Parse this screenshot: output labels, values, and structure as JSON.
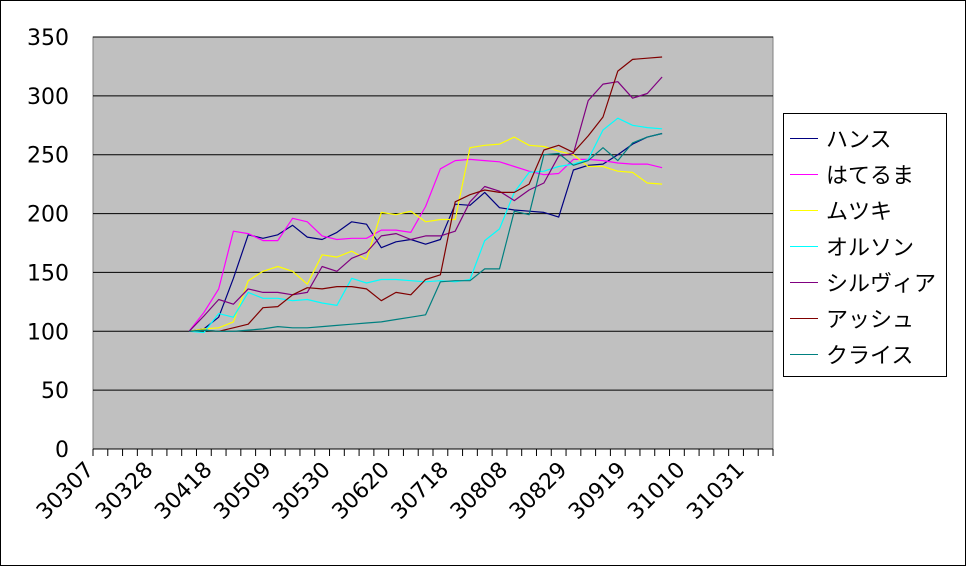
{
  "chart_data": {
    "type": "line",
    "title": "",
    "xlabel": "",
    "ylabel": "",
    "ylim": [
      0,
      350
    ],
    "yticks": [
      0,
      50,
      100,
      150,
      200,
      250,
      300,
      350
    ],
    "grid": true,
    "legend_position": "right",
    "plot_background": "#c0c0c0",
    "x_index_count": 46,
    "x_tick_labels": [
      {
        "index": 0,
        "label": "30307"
      },
      {
        "index": 4,
        "label": "30328"
      },
      {
        "index": 8,
        "label": "30418"
      },
      {
        "index": 12,
        "label": "30509"
      },
      {
        "index": 16,
        "label": "30530"
      },
      {
        "index": 20,
        "label": "30620"
      },
      {
        "index": 24,
        "label": "30718"
      },
      {
        "index": 28,
        "label": "30808"
      },
      {
        "index": 32,
        "label": "30829"
      },
      {
        "index": 36,
        "label": "30919"
      },
      {
        "index": 40,
        "label": "31010"
      },
      {
        "index": 44,
        "label": "31031"
      }
    ],
    "x_start_index": 6,
    "series": [
      {
        "name": "ハンス",
        "color": "#000080",
        "values": [
          100,
          102,
          112,
          145,
          182,
          179,
          182,
          190,
          180,
          178,
          184,
          193,
          191,
          171,
          176,
          178,
          174,
          178,
          208,
          207,
          218,
          205,
          203,
          202,
          201,
          197,
          237,
          241,
          242,
          250,
          259,
          265,
          268
        ]
      },
      {
        "name": "はてるま",
        "color": "#ff00ff",
        "values": [
          100,
          116,
          136,
          185,
          183,
          177,
          177,
          196,
          193,
          181,
          178,
          179,
          179,
          186,
          186,
          184,
          206,
          238,
          245,
          246,
          245,
          244,
          240,
          236,
          233,
          234,
          246,
          246,
          245,
          243,
          242,
          242,
          239
        ]
      },
      {
        "name": "ムツキ",
        "color": "#ffff00",
        "values": [
          100,
          102,
          103,
          108,
          143,
          151,
          155,
          151,
          140,
          165,
          163,
          168,
          161,
          201,
          199,
          202,
          193,
          195,
          195,
          256,
          258,
          259,
          265,
          258,
          257,
          253,
          250,
          240,
          240,
          236,
          235,
          226,
          225
        ]
      },
      {
        "name": "オルソン",
        "color": "#00ffff",
        "values": [
          100,
          99,
          115,
          112,
          133,
          128,
          128,
          126,
          127,
          124,
          122,
          145,
          141,
          144,
          144,
          143,
          142,
          143,
          142,
          144,
          177,
          187,
          218,
          235,
          236,
          240,
          242,
          246,
          271,
          281,
          275,
          273,
          272
        ]
      },
      {
        "name": "シルヴィア",
        "color": "#800080",
        "values": [
          100,
          113,
          127,
          123,
          136,
          133,
          133,
          131,
          133,
          155,
          151,
          162,
          167,
          181,
          183,
          178,
          181,
          181,
          185,
          210,
          223,
          219,
          211,
          220,
          226,
          249,
          251,
          296,
          310,
          312,
          298,
          302,
          316
        ]
      },
      {
        "name": "アッシュ",
        "color": "#800000",
        "values": [
          100,
          101,
          100,
          103,
          106,
          120,
          121,
          131,
          137,
          136,
          138,
          138,
          136,
          126,
          133,
          131,
          144,
          148,
          210,
          216,
          220,
          218,
          218,
          225,
          254,
          258,
          252,
          266,
          282,
          321,
          331,
          332,
          333
        ]
      },
      {
        "name": "クライス",
        "color": "#008080",
        "values": [
          100,
          101,
          100,
          100,
          101,
          102,
          104,
          103,
          103,
          104,
          105,
          106,
          107,
          108,
          110,
          112,
          114,
          142,
          143,
          143,
          153,
          153,
          202,
          199,
          250,
          251,
          241,
          245,
          256,
          245,
          260,
          265,
          268
        ]
      }
    ]
  }
}
